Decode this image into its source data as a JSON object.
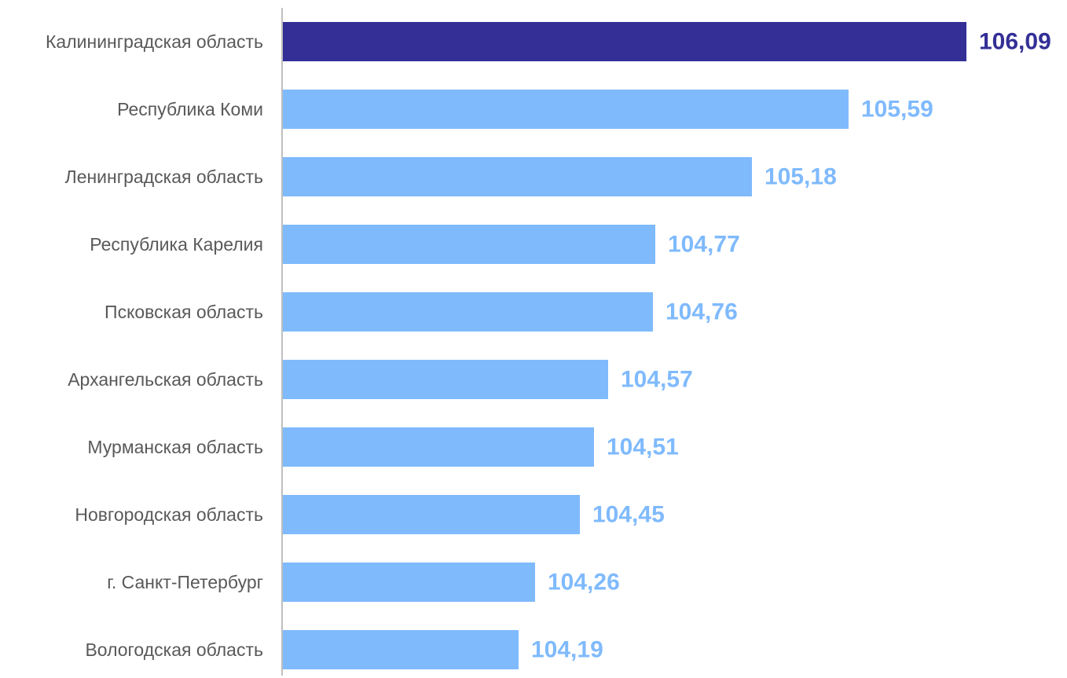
{
  "chart_data": {
    "type": "bar",
    "orientation": "horizontal",
    "categories": [
      "Калининградская область",
      "Республика Коми",
      "Ленинградская область",
      "Республика Карелия",
      "Псковская область",
      "Архангельская область",
      "Мурманская область",
      "Новгородская область",
      "г. Санкт-Петербург",
      "Вологодская область"
    ],
    "values": [
      106.09,
      105.59,
      105.18,
      104.77,
      104.76,
      104.57,
      104.51,
      104.45,
      104.26,
      104.19
    ],
    "value_labels": [
      "106,09",
      "105,59",
      "105,18",
      "104,77",
      "104,76",
      "104,57",
      "104,51",
      "104,45",
      "104,26",
      "104,19"
    ],
    "xlim": [
      103.19,
      106.09
    ],
    "grid": false,
    "legend": "none",
    "highlight_index": 0,
    "colors": {
      "highlight": "#332f96",
      "bar": "#7fbafd",
      "axis": "#bfbfbf",
      "category_text": "#595959"
    }
  }
}
